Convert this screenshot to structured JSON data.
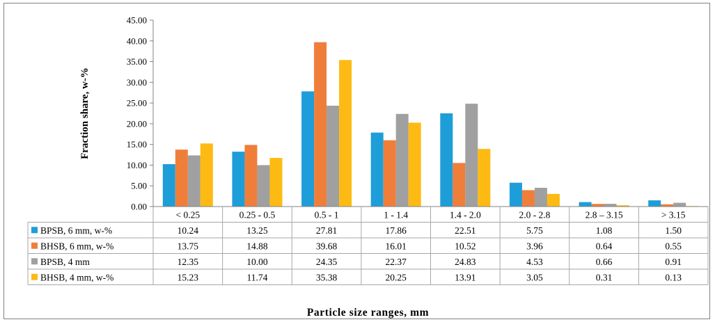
{
  "chart_data": {
    "type": "bar",
    "title": "",
    "xlabel": "Particle size ranges, mm",
    "ylabel": "Fraction share, w-%",
    "ylim": [
      0,
      45
    ],
    "yticks": [
      "0.00",
      "5.00",
      "10.00",
      "15.00",
      "20.00",
      "25.00",
      "30.00",
      "35.00",
      "40.00",
      "45.00"
    ],
    "grid": false,
    "legend": "table-below",
    "categories": [
      "< 0.25",
      "0.25 - 0.5",
      "0.5 - 1",
      "1 - 1.4",
      "1.4 - 2.0",
      "2.0 - 2.8",
      "2.8 – 3.15",
      "> 3.15"
    ],
    "series": [
      {
        "name": "BPSB, 6 mm, w-%",
        "color": "#1E9ED9",
        "values": [
          10.24,
          13.25,
          27.81,
          17.86,
          22.51,
          5.75,
          1.08,
          1.5
        ],
        "labels": [
          "10.24",
          "13.25",
          "27.81",
          "17.86",
          "22.51",
          "5.75",
          "1.08",
          "1.50"
        ]
      },
      {
        "name": "BHSB, 6 mm, w-%",
        "color": "#F07E3B",
        "values": [
          13.75,
          14.88,
          39.68,
          16.01,
          10.52,
          3.96,
          0.64,
          0.55
        ],
        "labels": [
          "13.75",
          "14.88",
          "39.68",
          "16.01",
          "10.52",
          "3.96",
          "0.64",
          "0.55"
        ]
      },
      {
        "name": "BPSB, 4 mm",
        "color": "#A0A0A0",
        "values": [
          12.35,
          10.0,
          24.35,
          22.37,
          24.83,
          4.53,
          0.66,
          0.91
        ],
        "labels": [
          "12.35",
          "10.00",
          "24.35",
          "22.37",
          "24.83",
          "4.53",
          "0.66",
          "0.91"
        ]
      },
      {
        "name": "BHSB, 4 mm, w-%",
        "color": "#FDBA12",
        "values": [
          15.23,
          11.74,
          35.38,
          20.25,
          13.91,
          3.05,
          0.31,
          0.13
        ],
        "labels": [
          "15.23",
          "11.74",
          "35.38",
          "20.25",
          "13.91",
          "3.05",
          "0.31",
          "0.13"
        ]
      }
    ]
  }
}
